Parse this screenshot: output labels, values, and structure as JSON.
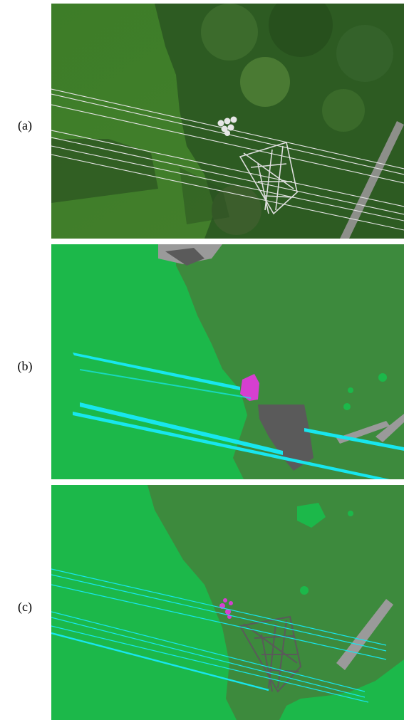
{
  "panels": [
    {
      "label": "(a)",
      "kind": "aerial photograph"
    },
    {
      "label": "(b)",
      "kind": "segmentation"
    },
    {
      "label": "(c)",
      "kind": "segmentation"
    }
  ],
  "colors": {
    "grass": "#1cb84a",
    "vegetation": "#3d8a3d",
    "powerline": "#18e6ee",
    "tower": "#5a5a5a",
    "path": "#9a9a9a",
    "object": "#d63fd0",
    "photo_grass": "#3f7f2a",
    "photo_trees": "#2f5a24"
  }
}
